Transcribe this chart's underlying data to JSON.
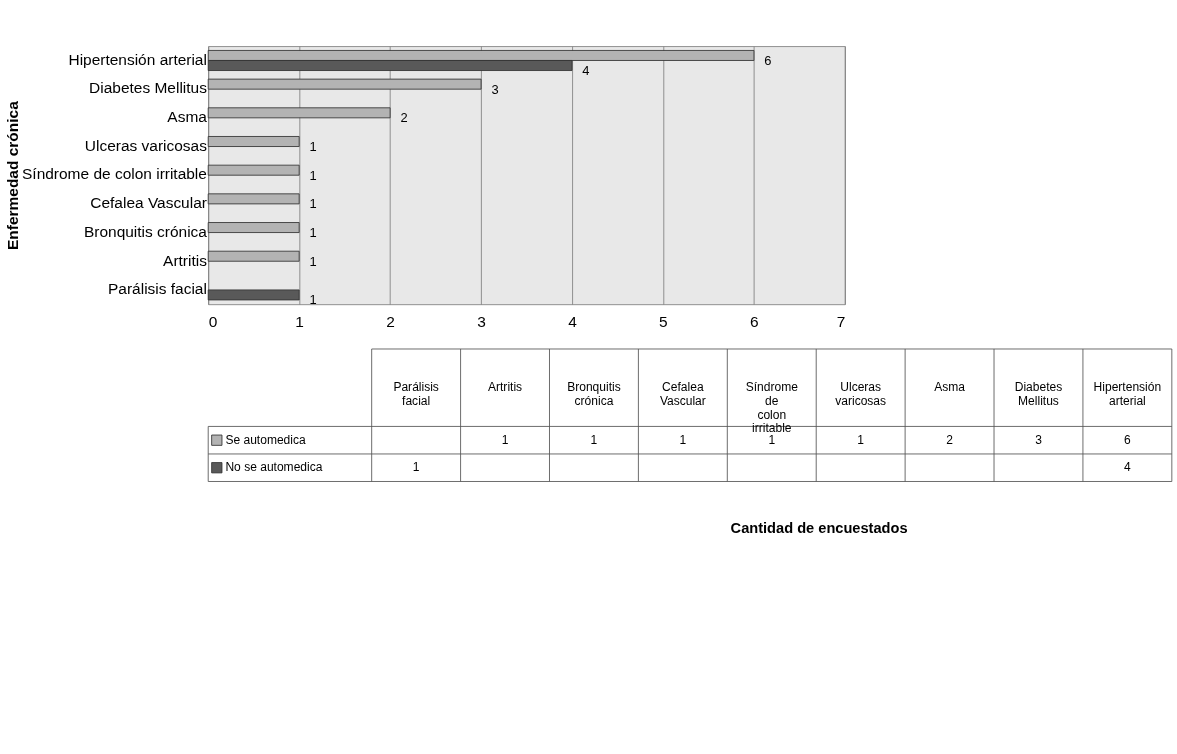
{
  "chart_data": [
    {
      "type": "bar",
      "orientation": "horizontal",
      "ylabel": "Enfermedad crónica",
      "categories": [
        "Hipertensión arterial",
        "Diabetes Mellitus",
        "Asma",
        "Ulceras varicosas",
        "Síndrome de colon irritable",
        "Cefalea Vascular",
        "Bronquitis crónica",
        "Artritis",
        "Parálisis facial"
      ],
      "series": [
        {
          "color": "#b3b3b3",
          "values": [
            6,
            3,
            2,
            1,
            1,
            1,
            1,
            1,
            null
          ]
        },
        {
          "color": "#595959",
          "values": [
            4,
            null,
            null,
            null,
            null,
            null,
            null,
            null,
            1
          ]
        }
      ],
      "xlim": [
        0,
        7
      ],
      "xticks": [
        0,
        1,
        2,
        3,
        4,
        5,
        6,
        7
      ],
      "grid": "x",
      "data_labels": true
    },
    {
      "type": "other",
      "annotations": [
        "Cantidad de encuestados"
      ],
      "categories": [
        "Parálisis facial",
        "Artritis",
        "Bronquitis crónica",
        "Cefalea Vascular",
        "Síndrome de colon irritable",
        "Ulceras varicosas",
        "Asma",
        "Diabetes Mellitus",
        "Hipertensión arterial"
      ],
      "series": [
        {
          "name": "Se automedica",
          "color": "#b3b3b3",
          "values": [
            null,
            1,
            1,
            1,
            1,
            1,
            2,
            3,
            6
          ]
        },
        {
          "name": "No se automedica",
          "color": "#595959",
          "values": [
            1,
            null,
            null,
            null,
            null,
            null,
            null,
            null,
            4
          ]
        }
      ],
      "data_labels": true
    }
  ]
}
